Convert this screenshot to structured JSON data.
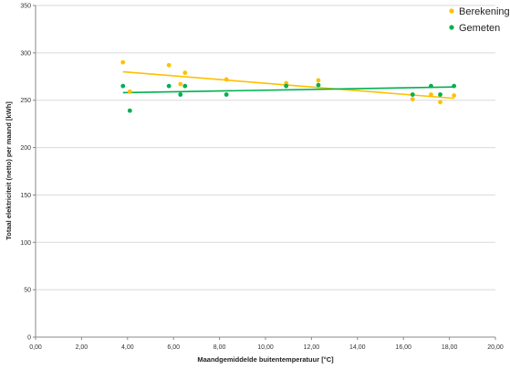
{
  "chart_data": {
    "type": "scatter",
    "xlabel": "Maandgemiddelde buitentemperatuur [°C]",
    "ylabel": "Totaal elektriciteit (netto) per maand [kWh]",
    "xlim": [
      0,
      20
    ],
    "ylim": [
      0,
      350
    ],
    "x_ticks": [
      "0,00",
      "2,00",
      "4,00",
      "6,00",
      "8,00",
      "10,00",
      "12,00",
      "14,00",
      "16,00",
      "18,00",
      "20,00"
    ],
    "y_ticks": [
      "0",
      "50",
      "100",
      "150",
      "200",
      "250",
      "300",
      "350"
    ],
    "grid": "horizontal",
    "legend": "top-right",
    "series": [
      {
        "name": "Berekening",
        "color": "#FFC000",
        "points": [
          [
            3.8,
            290
          ],
          [
            4.1,
            259
          ],
          [
            5.8,
            287
          ],
          [
            6.3,
            267
          ],
          [
            6.5,
            279
          ],
          [
            8.3,
            272
          ],
          [
            10.9,
            268
          ],
          [
            12.3,
            271
          ],
          [
            16.4,
            251
          ],
          [
            17.2,
            256
          ],
          [
            17.6,
            248
          ],
          [
            18.2,
            255
          ]
        ],
        "trendline": [
          [
            3.8,
            280
          ],
          [
            18.2,
            252
          ]
        ]
      },
      {
        "name": "Gemeten",
        "color": "#00B050",
        "points": [
          [
            3.8,
            265
          ],
          [
            4.1,
            239
          ],
          [
            5.8,
            265
          ],
          [
            6.3,
            256
          ],
          [
            6.5,
            265
          ],
          [
            8.3,
            256
          ],
          [
            10.9,
            265
          ],
          [
            12.3,
            266
          ],
          [
            16.4,
            256
          ],
          [
            17.2,
            265
          ],
          [
            17.6,
            256
          ],
          [
            18.2,
            265
          ]
        ],
        "trendline": [
          [
            3.8,
            258
          ],
          [
            18.2,
            264
          ]
        ]
      }
    ]
  }
}
